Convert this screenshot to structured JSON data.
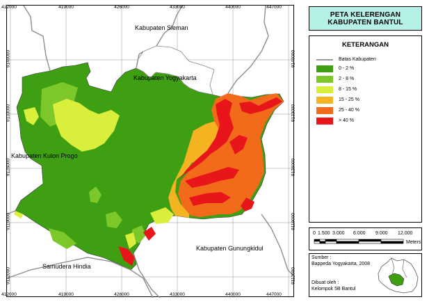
{
  "title": {
    "line1": "PETA KELERENGAN",
    "line2": "KABUPATEN BANTUL"
  },
  "grid": {
    "x_ticks": [
      "412000",
      "419000",
      "426000",
      "433000",
      "440000",
      "447000"
    ],
    "y_ticks": [
      "9140000",
      "9133000",
      "9126000",
      "9119000",
      "9112000"
    ]
  },
  "map_labels": {
    "sleman": "Kabupaten Sleman",
    "yogyakarta": "Kabupaten Yogyakarta",
    "kulon_progo": "Kabupaten Kulon Progo",
    "gunungkidul": "Kabupaten Gunungkidul",
    "samudera": "Samudera Hindia"
  },
  "legend": {
    "heading": "KETERANGAN",
    "boundary_label": "Batas Kabupaten",
    "boundary_color": "#9a9a9a",
    "classes": [
      {
        "label": "0 - 2 %",
        "color": "#3f9f12"
      },
      {
        "label": "2 - 8 %",
        "color": "#7cc82a"
      },
      {
        "label": "8 - 15 %",
        "color": "#d9ef3c"
      },
      {
        "label": "15 - 25 %",
        "color": "#f4b421"
      },
      {
        "label": "25 - 40 %",
        "color": "#f26b1b"
      },
      {
        "label": "> 40 %",
        "color": "#e8161b"
      }
    ]
  },
  "scale": {
    "labels": [
      "0",
      "1.500",
      "3.000",
      "6.000",
      "9.000",
      "12.000"
    ],
    "unit": "Meters"
  },
  "source": {
    "label": "Sumber :",
    "value": "Bappeda Yogyakarta, 2008",
    "made_label": "Dibuat oleh :",
    "made_value": "Kelompok 5B Bantul"
  }
}
